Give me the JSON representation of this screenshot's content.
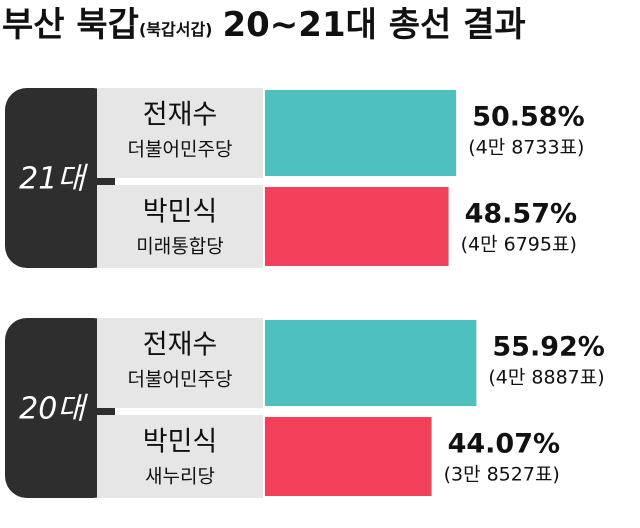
{
  "chart_data": {
    "type": "hbar",
    "title": [
      "부산 북갑",
      "(북갑서갑)",
      "20∼21대 총선 결과"
    ],
    "xlim": [
      0,
      100
    ],
    "groups": [
      {
        "name": "21대",
        "candidates": [
          {
            "name": "전재수",
            "party": "더불어민주당",
            "color": "#4fc0c0",
            "value": 50.58,
            "value_label": "50.58%",
            "votes": 48733,
            "votes_label": "(4만 8733표)"
          },
          {
            "name": "박민식",
            "party": "미래통합당",
            "color": "#f2405a",
            "value": 48.57,
            "value_label": "48.57%",
            "votes": 46795,
            "votes_label": "(4만 6795표)"
          }
        ]
      },
      {
        "name": "20대",
        "candidates": [
          {
            "name": "전재수",
            "party": "더불어민주당",
            "color": "#4fc0c0",
            "value": 55.92,
            "value_label": "55.92%",
            "votes": 48887,
            "votes_label": "(4만 8887표)"
          },
          {
            "name": "박민식",
            "party": "새누리당",
            "color": "#f2405a",
            "value": 44.07,
            "value_label": "44.07%",
            "votes": 38527,
            "votes_label": "(3만 8527표)"
          }
        ]
      }
    ]
  }
}
